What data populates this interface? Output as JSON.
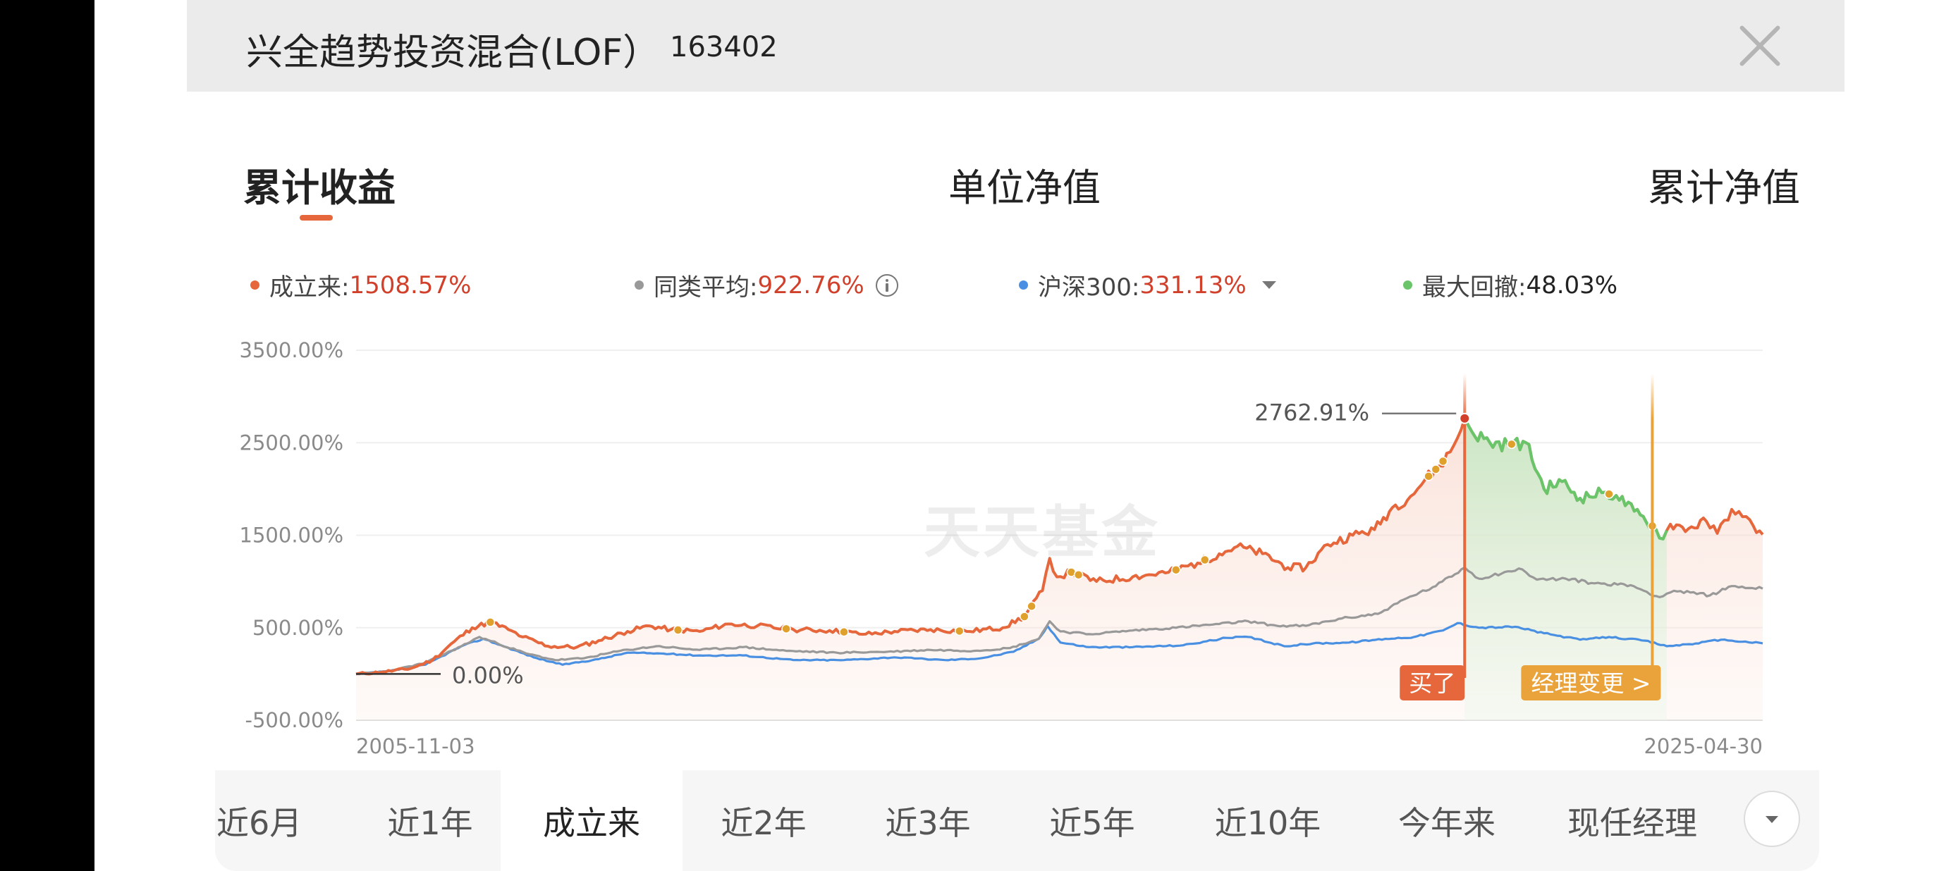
{
  "header": {
    "fund_name": "兴全趋势投资混合(LOF）",
    "fund_code": "163402"
  },
  "main_tabs": [
    {
      "label": "累计收益",
      "active": true
    },
    {
      "label": "单位净值",
      "active": false
    },
    {
      "label": "累计净值",
      "active": false
    }
  ],
  "legend": [
    {
      "label": "成立来:",
      "value": "1508.57%",
      "color": "#e5673b"
    },
    {
      "label": "同类平均:",
      "value": "922.76%",
      "color": "#999999"
    },
    {
      "label": "沪深300:",
      "value": "331.13%",
      "color": "#4a90e2"
    },
    {
      "label": "最大回撤:",
      "value": "48.03%",
      "color": "#6ac46a"
    }
  ],
  "watermark": "天天基金",
  "chart_data": {
    "type": "line",
    "x_start_label": "2005-11-03",
    "x_end_label": "2025-04-30",
    "y_ticks": [
      "3500.00%",
      "2500.00%",
      "1500.00%",
      "500.00%",
      "-500.00%"
    ],
    "ylim": [
      -500,
      3500
    ],
    "annotations": {
      "start_label": "0.00%",
      "peak_label": "2762.91%",
      "buy_label": "买了",
      "manager_change_label": "经理变更 >"
    },
    "x_range": [
      2005.84,
      2025.33
    ],
    "series": [
      {
        "name": "成立来",
        "color": "#e5673b",
        "points": [
          [
            2005.84,
            0
          ],
          [
            2006.2,
            20
          ],
          [
            2006.6,
            60
          ],
          [
            2006.9,
            150
          ],
          [
            2007.2,
            350
          ],
          [
            2007.45,
            500
          ],
          [
            2007.7,
            560
          ],
          [
            2007.95,
            480
          ],
          [
            2008.15,
            400
          ],
          [
            2008.5,
            300
          ],
          [
            2008.9,
            290
          ],
          [
            2009.2,
            360
          ],
          [
            2009.6,
            460
          ],
          [
            2009.9,
            520
          ],
          [
            2010.2,
            480
          ],
          [
            2010.6,
            460
          ],
          [
            2011.0,
            540
          ],
          [
            2011.4,
            520
          ],
          [
            2011.9,
            480
          ],
          [
            2012.4,
            470
          ],
          [
            2012.9,
            430
          ],
          [
            2013.3,
            460
          ],
          [
            2013.8,
            480
          ],
          [
            2014.3,
            460
          ],
          [
            2014.8,
            500
          ],
          [
            2015.1,
            620
          ],
          [
            2015.35,
            900
          ],
          [
            2015.45,
            1250
          ],
          [
            2015.55,
            1050
          ],
          [
            2015.75,
            1100
          ],
          [
            2016.1,
            1000
          ],
          [
            2016.6,
            1050
          ],
          [
            2017.1,
            1100
          ],
          [
            2017.5,
            1200
          ],
          [
            2017.8,
            1300
          ],
          [
            2018.05,
            1380
          ],
          [
            2018.4,
            1300
          ],
          [
            2018.75,
            1150
          ],
          [
            2019.0,
            1150
          ],
          [
            2019.3,
            1400
          ],
          [
            2019.65,
            1500
          ],
          [
            2019.95,
            1560
          ],
          [
            2020.2,
            1800
          ],
          [
            2020.45,
            1920
          ],
          [
            2020.65,
            2100
          ],
          [
            2020.85,
            2250
          ],
          [
            2021.0,
            2400
          ],
          [
            2021.1,
            2550
          ],
          [
            2021.2,
            2762.91
          ],
          [
            2021.3,
            2620
          ],
          [
            2021.55,
            2500
          ],
          [
            2021.8,
            2480
          ],
          [
            2022.05,
            2500
          ],
          [
            2022.3,
            2000
          ],
          [
            2022.55,
            2080
          ],
          [
            2022.8,
            1900
          ],
          [
            2023.1,
            1960
          ],
          [
            2023.3,
            1930
          ],
          [
            2023.55,
            1760
          ],
          [
            2023.8,
            1600
          ],
          [
            2023.95,
            1460
          ],
          [
            2024.05,
            1620
          ],
          [
            2024.3,
            1570
          ],
          [
            2024.55,
            1650
          ],
          [
            2024.7,
            1520
          ],
          [
            2024.9,
            1780
          ],
          [
            2025.05,
            1700
          ],
          [
            2025.2,
            1600
          ],
          [
            2025.33,
            1508.57
          ]
        ]
      },
      {
        "name": "同类平均",
        "color": "#999999",
        "points": [
          [
            2005.84,
            0
          ],
          [
            2006.3,
            30
          ],
          [
            2006.8,
            120
          ],
          [
            2007.3,
            300
          ],
          [
            2007.55,
            400
          ],
          [
            2007.8,
            330
          ],
          [
            2008.2,
            220
          ],
          [
            2008.6,
            150
          ],
          [
            2009.0,
            170
          ],
          [
            2009.5,
            250
          ],
          [
            2010.0,
            300
          ],
          [
            2010.6,
            260
          ],
          [
            2011.2,
            290
          ],
          [
            2011.8,
            250
          ],
          [
            2012.5,
            230
          ],
          [
            2013.2,
            240
          ],
          [
            2013.8,
            260
          ],
          [
            2014.4,
            250
          ],
          [
            2014.9,
            280
          ],
          [
            2015.3,
            380
          ],
          [
            2015.45,
            570
          ],
          [
            2015.6,
            460
          ],
          [
            2016.0,
            430
          ],
          [
            2016.6,
            470
          ],
          [
            2017.2,
            500
          ],
          [
            2017.8,
            540
          ],
          [
            2018.2,
            570
          ],
          [
            2018.6,
            520
          ],
          [
            2019.0,
            520
          ],
          [
            2019.5,
            600
          ],
          [
            2020.0,
            650
          ],
          [
            2020.4,
            820
          ],
          [
            2020.8,
            950
          ],
          [
            2021.2,
            1150
          ],
          [
            2021.4,
            1030
          ],
          [
            2021.8,
            1110
          ],
          [
            2022.0,
            1130
          ],
          [
            2022.2,
            1020
          ],
          [
            2022.6,
            1030
          ],
          [
            2023.0,
            980
          ],
          [
            2023.5,
            960
          ],
          [
            2023.9,
            830
          ],
          [
            2024.1,
            900
          ],
          [
            2024.6,
            850
          ],
          [
            2024.9,
            950
          ],
          [
            2025.33,
            922.76
          ]
        ]
      },
      {
        "name": "沪深300",
        "color": "#4a90e2",
        "points": [
          [
            2005.84,
            0
          ],
          [
            2006.3,
            30
          ],
          [
            2006.8,
            100
          ],
          [
            2007.3,
            300
          ],
          [
            2007.6,
            380
          ],
          [
            2007.85,
            310
          ],
          [
            2008.3,
            180
          ],
          [
            2008.7,
            100
          ],
          [
            2009.2,
            160
          ],
          [
            2009.6,
            230
          ],
          [
            2010.1,
            220
          ],
          [
            2010.6,
            200
          ],
          [
            2011.2,
            200
          ],
          [
            2011.9,
            150
          ],
          [
            2012.6,
            150
          ],
          [
            2013.3,
            180
          ],
          [
            2014.0,
            150
          ],
          [
            2014.5,
            170
          ],
          [
            2014.95,
            240
          ],
          [
            2015.3,
            380
          ],
          [
            2015.42,
            520
          ],
          [
            2015.6,
            340
          ],
          [
            2016.0,
            290
          ],
          [
            2016.6,
            290
          ],
          [
            2017.3,
            310
          ],
          [
            2017.9,
            390
          ],
          [
            2018.2,
            400
          ],
          [
            2018.7,
            300
          ],
          [
            2019.1,
            330
          ],
          [
            2019.6,
            340
          ],
          [
            2020.1,
            380
          ],
          [
            2020.5,
            400
          ],
          [
            2020.9,
            470
          ],
          [
            2021.1,
            550
          ],
          [
            2021.4,
            500
          ],
          [
            2021.9,
            510
          ],
          [
            2022.3,
            440
          ],
          [
            2022.8,
            370
          ],
          [
            2023.2,
            400
          ],
          [
            2023.7,
            360
          ],
          [
            2024.0,
            300
          ],
          [
            2024.4,
            330
          ],
          [
            2024.75,
            370
          ],
          [
            2024.9,
            360
          ],
          [
            2025.33,
            331.13
          ]
        ]
      }
    ],
    "drawdown_range": [
      2021.2,
      2024.0
    ],
    "buy_marker_x": 2021.2,
    "manager_change_x": 2023.8,
    "event_dots_x": [
      2007.7,
      2010.3,
      2011.8,
      2012.6,
      2014.2,
      2015.1,
      2015.2,
      2015.75,
      2015.85,
      2017.2,
      2017.6,
      2020.7,
      2020.8,
      2020.9,
      2021.2,
      2021.85,
      2023.2,
      2023.8
    ]
  },
  "periods": [
    {
      "label": "近6月",
      "active": false
    },
    {
      "label": "近1年",
      "active": false
    },
    {
      "label": "成立来",
      "active": true
    },
    {
      "label": "近2年",
      "active": false
    },
    {
      "label": "近3年",
      "active": false
    },
    {
      "label": "近5年",
      "active": false
    },
    {
      "label": "近10年",
      "active": false
    },
    {
      "label": "今年来",
      "active": false
    },
    {
      "label": "现任经理",
      "active": false
    }
  ]
}
